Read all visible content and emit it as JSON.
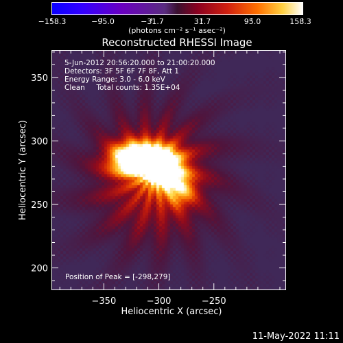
{
  "chart_data": {
    "type": "heatmap",
    "title": "Reconstructed RHESSI Image",
    "xlabel": "Heliocentric X (arcsec)",
    "ylabel": "Heliocentric Y (arcsec)",
    "xlim": [
      -397,
      -185
    ],
    "ylim": [
      183,
      371
    ],
    "xticks": [
      -350,
      -300,
      -250
    ],
    "xtick_labels": [
      "−350",
      "−300",
      "−250"
    ],
    "yticks": [
      200,
      250,
      300,
      350
    ],
    "ytick_labels": [
      "200",
      "250",
      "300",
      "350"
    ],
    "colorbar": {
      "range": [
        -158.3,
        158.3
      ],
      "tick_labels": [
        "−158.3",
        "−95.0",
        "−31.7",
        "31.7",
        "95.0",
        "158.3"
      ],
      "unit_label": "(photons cm⁻² s⁻¹ asec⁻²)",
      "colors": [
        "#0a00ff",
        "#6a00c0",
        "#5a2c80",
        "#ffffff"
      ]
    },
    "annotations": {
      "time_range": "5-Jun-2012 20:56:20.000 to 21:00:20.000",
      "detectors": "Detectors: 3F 5F 6F 7F 8F, Att 1",
      "energy": "Energy Range: 3.0 - 6.0 keV",
      "clean": "Clean     Total counts: 1.35E+04",
      "peak": "Position of Peak = [-298,279]"
    },
    "peak": {
      "x": -298,
      "y": 279
    },
    "source_blobs": [
      {
        "x": -296,
        "y": 277,
        "amp": 158,
        "sx": 12,
        "sy": 10
      },
      {
        "x": -325,
        "y": 285,
        "amp": 130,
        "sx": 14,
        "sy": 9
      },
      {
        "x": -310,
        "y": 288,
        "amp": 110,
        "sx": 18,
        "sy": 8
      },
      {
        "x": -280,
        "y": 262,
        "amp": 80,
        "sx": 10,
        "sy": 10
      },
      {
        "x": -305,
        "y": 270,
        "amp": 70,
        "sx": 40,
        "sy": 35
      }
    ],
    "background_color": "#402858"
  },
  "timestamp": "11-May-2022 11:11"
}
